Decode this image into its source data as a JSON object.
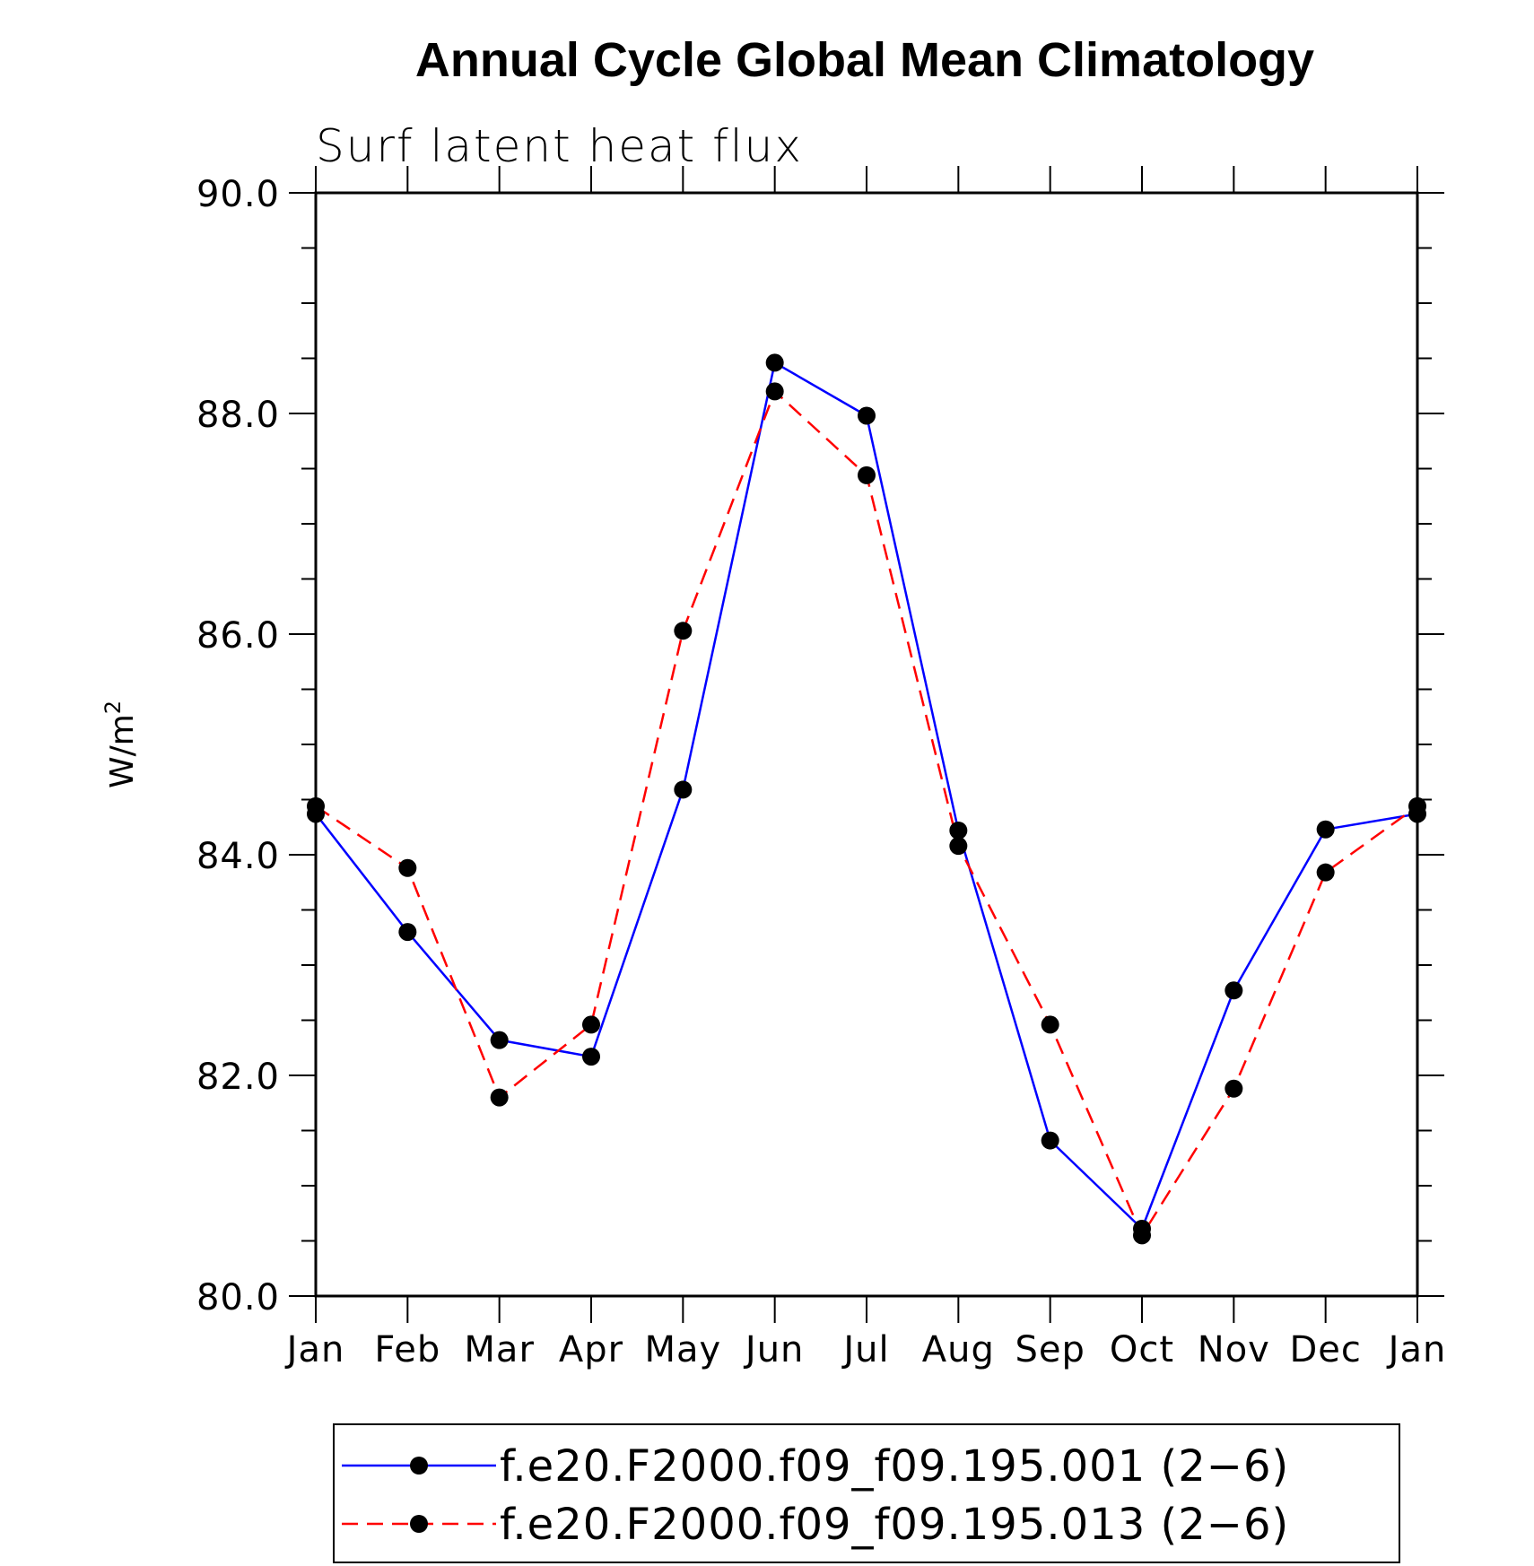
{
  "chart_data": {
    "type": "line",
    "title": "Annual Cycle Global Mean Climatology",
    "subtitle": "Surf latent heat flux",
    "ylabel": "W/m",
    "ylabel_sup": "2",
    "xlabel": "",
    "categories": [
      "Jan",
      "Feb",
      "Mar",
      "Apr",
      "May",
      "Jun",
      "Jul",
      "Aug",
      "Sep",
      "Oct",
      "Nov",
      "Dec",
      "Jan"
    ],
    "ylim": [
      80.0,
      90.0
    ],
    "yticks": [
      "80.0",
      "82.0",
      "84.0",
      "86.0",
      "88.0",
      "90.0"
    ],
    "grid": false,
    "legend_position": "bottom",
    "series": [
      {
        "name": "f.e20.F2000.f09_f09.195.001 (2−6)",
        "color": "#0000ff",
        "line_style": "solid",
        "marker": "filled-circle",
        "values": [
          84.37,
          83.3,
          82.32,
          82.17,
          84.59,
          88.46,
          87.98,
          84.22,
          81.41,
          80.61,
          82.77,
          84.23,
          84.37
        ]
      },
      {
        "name": "f.e20.F2000.f09_f09.195.013 (2−6)",
        "color": "#ff0000",
        "line_style": "dashed",
        "marker": "filled-circle",
        "values": [
          84.44,
          83.88,
          81.8,
          82.46,
          86.03,
          88.2,
          87.44,
          84.08,
          82.46,
          80.55,
          81.88,
          83.84,
          84.44
        ]
      }
    ]
  }
}
